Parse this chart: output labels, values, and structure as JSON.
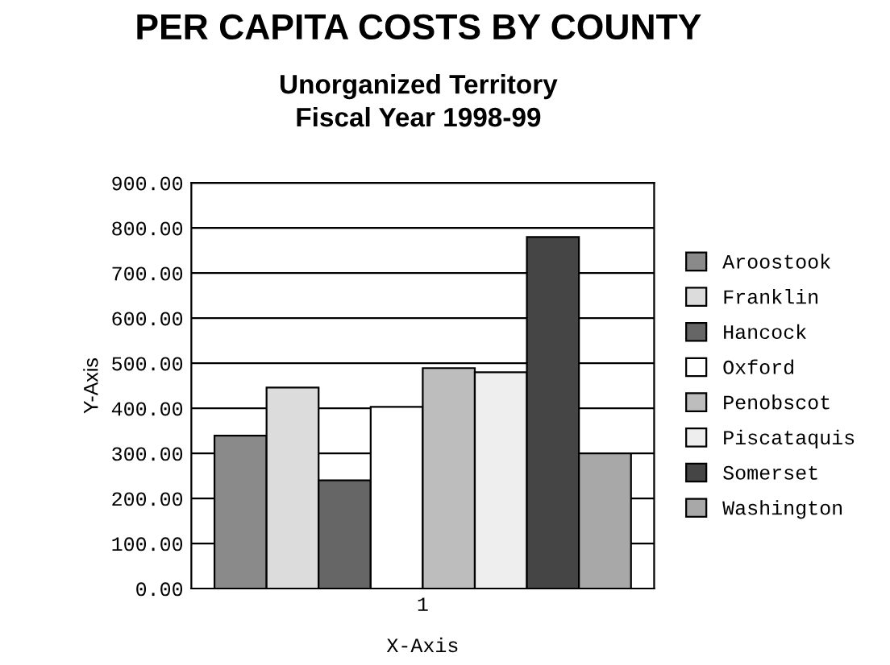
{
  "chart_data": {
    "type": "bar",
    "title": "PER CAPITA COSTS BY COUNTY",
    "subtitle": "Unorganized Territory\nFiscal Year 1998-99",
    "xlabel": "X-Axis",
    "ylabel": "Y-Axis",
    "categories": [
      "1"
    ],
    "series": [
      {
        "name": "Aroostook",
        "color": "#8a8a8a",
        "values": [
          339
        ]
      },
      {
        "name": "Franklin",
        "color": "#dcdcdc",
        "values": [
          446
        ]
      },
      {
        "name": "Hancock",
        "color": "#666666",
        "values": [
          240
        ]
      },
      {
        "name": "Oxford",
        "color": "#ffffff",
        "values": [
          403
        ]
      },
      {
        "name": "Penobscot",
        "color": "#bdbdbd",
        "values": [
          489
        ]
      },
      {
        "name": "Piscataquis",
        "color": "#eeeeee",
        "values": [
          480
        ]
      },
      {
        "name": "Somerset",
        "color": "#454545",
        "values": [
          780
        ]
      },
      {
        "name": "Washington",
        "color": "#a8a8a8",
        "values": [
          300
        ]
      }
    ],
    "ylim": [
      0,
      900
    ],
    "yticks": [
      {
        "value": 0,
        "label": "0.00"
      },
      {
        "value": 100,
        "label": "100.00"
      },
      {
        "value": 200,
        "label": "200.00"
      },
      {
        "value": 300,
        "label": "300.00"
      },
      {
        "value": 400,
        "label": "400.00"
      },
      {
        "value": 500,
        "label": "500.00"
      },
      {
        "value": 600,
        "label": "600.00"
      },
      {
        "value": 700,
        "label": "700.00"
      },
      {
        "value": 800,
        "label": "800.00"
      },
      {
        "value": 900,
        "label": "900.00"
      }
    ],
    "grid": "y",
    "legend": "right"
  }
}
